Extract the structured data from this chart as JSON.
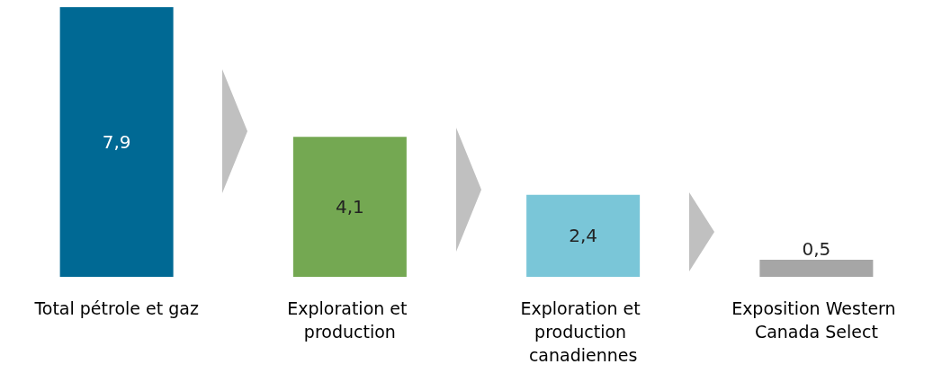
{
  "chart_data": {
    "type": "bar",
    "categories": [
      "Total pétrole et gaz",
      "Exploration et production",
      "Exploration et production canadiennes",
      "Exposition Western Canada Select"
    ],
    "values": [
      7.9,
      4.1,
      2.4,
      0.5
    ],
    "colors": [
      "#006994",
      "#74a852",
      "#7ac6d8",
      "#a6a6a6"
    ],
    "value_labels": [
      "7,9",
      "4,1",
      "2,4",
      "0,5"
    ]
  }
}
